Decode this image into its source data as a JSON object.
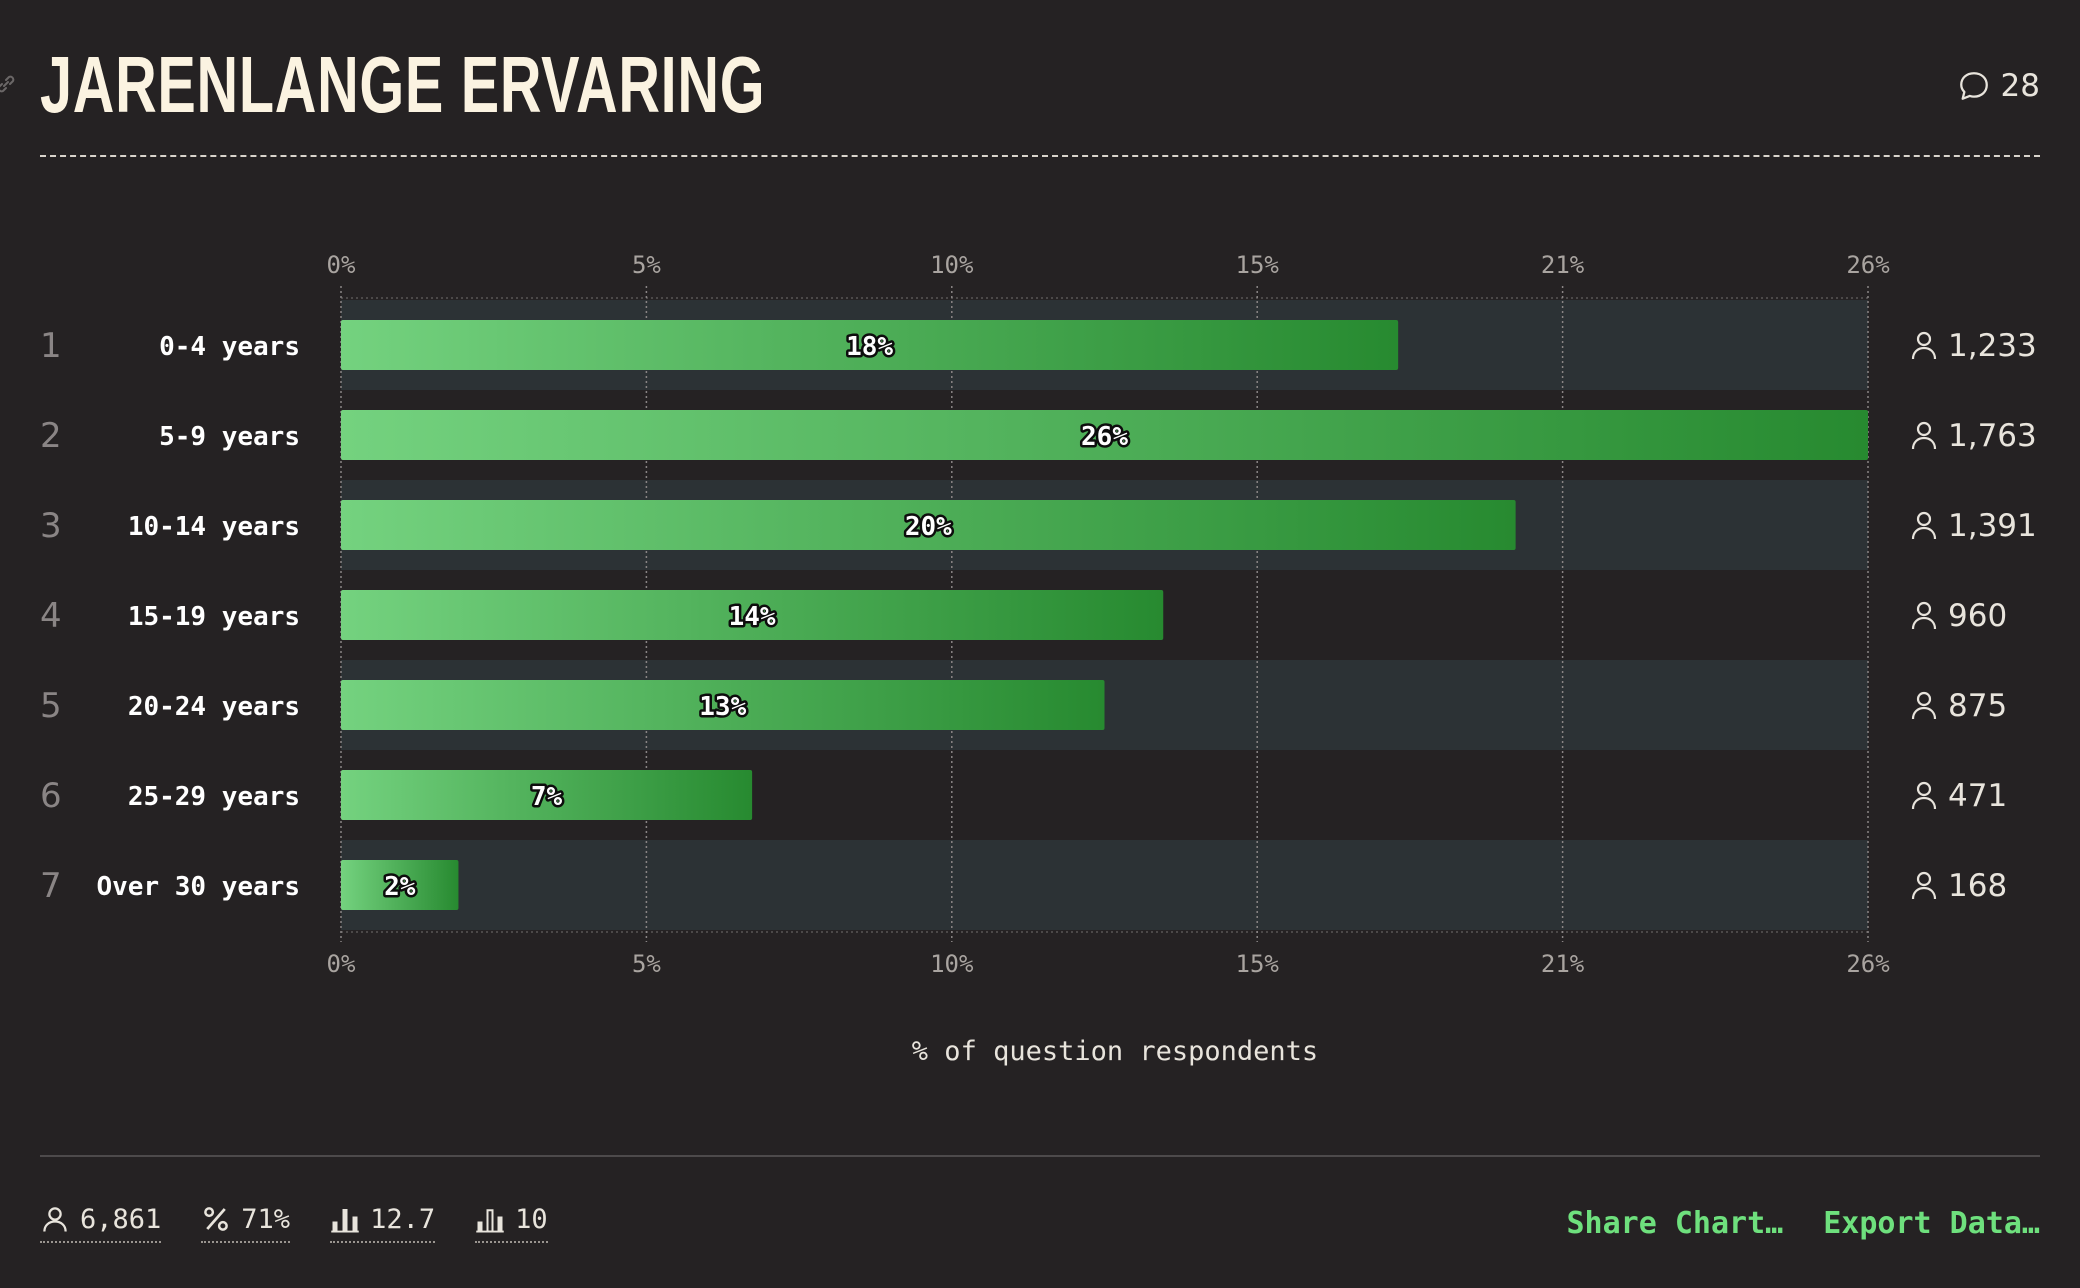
{
  "header": {
    "title": "JARENLANGE ERVARING",
    "comment_count": "28"
  },
  "chart_data": {
    "type": "bar",
    "orientation": "horizontal",
    "categories": [
      "0-4 years",
      "5-9 years",
      "10-14 years",
      "15-19 years",
      "20-24 years",
      "25-29 years",
      "Over 30 years"
    ],
    "ranks": [
      "1",
      "2",
      "3",
      "4",
      "5",
      "6",
      "7"
    ],
    "values": [
      18,
      26,
      20,
      14,
      13,
      7,
      2
    ],
    "value_labels": [
      "18%",
      "26%",
      "20%",
      "14%",
      "13%",
      "7%",
      "2%"
    ],
    "respondents": [
      "1,233",
      "1,763",
      "1,391",
      "960",
      "875",
      "471",
      "168"
    ],
    "xlabel": "% of question respondents",
    "xticks": [
      "0%",
      "5%",
      "10%",
      "15%",
      "21%",
      "26%"
    ],
    "xlim": [
      0,
      26
    ],
    "grid": true,
    "bar_color_start": "#74d27f",
    "bar_color_end": "#278a30"
  },
  "footer": {
    "stats": [
      {
        "icon": "person-icon",
        "value": "6,861"
      },
      {
        "icon": "percent-icon",
        "value": "71%"
      },
      {
        "icon": "bar-chart-icon",
        "value": "12.7"
      },
      {
        "icon": "bar-chart-outline-icon",
        "value": "10"
      }
    ],
    "share_label": "Share Chart…",
    "export_label": "Export Data…"
  }
}
